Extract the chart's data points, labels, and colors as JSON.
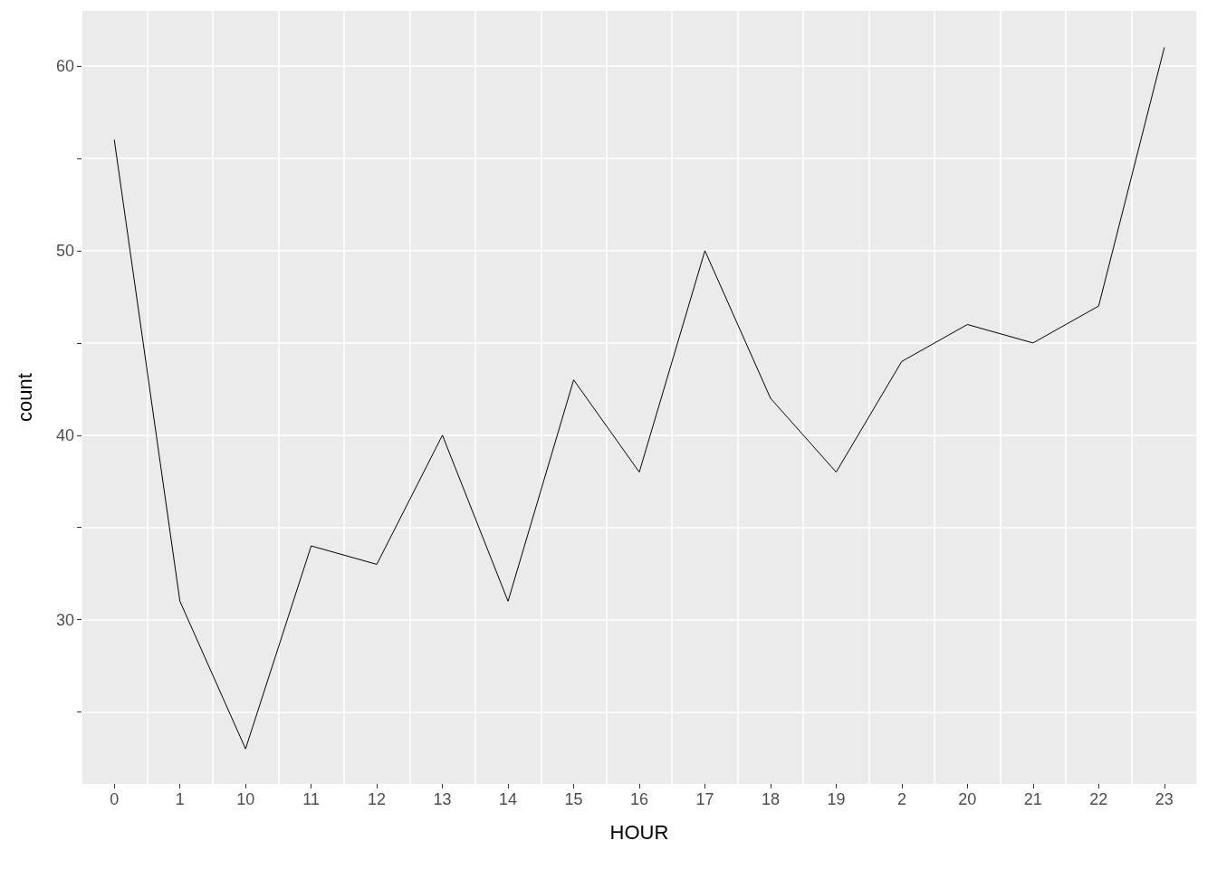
{
  "chart_data": {
    "type": "line",
    "xlabel": "HOUR",
    "ylabel": "count",
    "categories": [
      "0",
      "1",
      "10",
      "11",
      "12",
      "13",
      "14",
      "15",
      "16",
      "17",
      "18",
      "19",
      "2",
      "20",
      "21",
      "22",
      "23"
    ],
    "series": [
      {
        "color": "#000000",
        "values": [
          56,
          31,
          23,
          34,
          33,
          40,
          31,
          43,
          38,
          50,
          42,
          38,
          44,
          46,
          45,
          47,
          61
        ]
      }
    ],
    "ylim": [
      21.1,
      63
    ],
    "yticks": [
      {
        "value": 25,
        "label": null
      },
      30,
      {
        "value": 35,
        "label": null
      },
      40,
      {
        "value": 45,
        "label": null
      },
      50,
      {
        "value": 55,
        "label": null
      },
      60
    ],
    "grid": true,
    "marker": "none",
    "line_style": "solid"
  }
}
